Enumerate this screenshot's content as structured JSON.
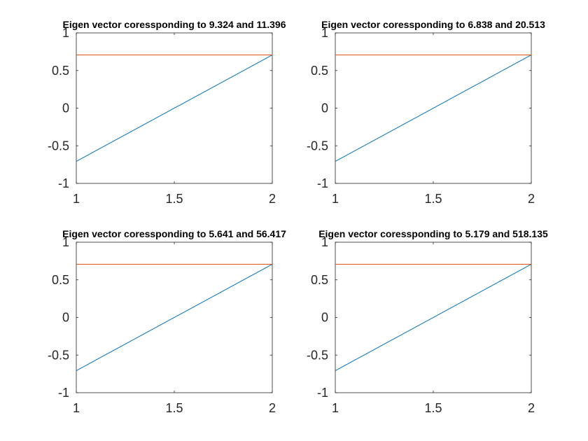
{
  "chart_data": [
    {
      "type": "line",
      "title": "Eigen vector coressponding to 9.324 and 11.396",
      "xlim": [
        1,
        2
      ],
      "ylim": [
        -1,
        1
      ],
      "xticks": [
        "1",
        "1.5",
        "2"
      ],
      "yticks": [
        "-1",
        "-0.5",
        "0",
        "0.5",
        "1"
      ],
      "x": [
        1,
        2
      ],
      "series": [
        {
          "values": [
            -0.7071,
            0.7071
          ],
          "color": "#0072BD"
        },
        {
          "values": [
            0.7071,
            0.7071
          ],
          "color": "#D95319"
        }
      ],
      "grid": false
    },
    {
      "type": "line",
      "title": "Eigen vector coressponding to 6.838 and 20.513",
      "xlim": [
        1,
        2
      ],
      "ylim": [
        -1,
        1
      ],
      "xticks": [
        "1",
        "1.5",
        "2"
      ],
      "yticks": [
        "-1",
        "-0.5",
        "0",
        "0.5",
        "1"
      ],
      "x": [
        1,
        2
      ],
      "series": [
        {
          "values": [
            -0.7071,
            0.7071
          ],
          "color": "#0072BD"
        },
        {
          "values": [
            0.7071,
            0.7071
          ],
          "color": "#D95319"
        }
      ],
      "grid": false
    },
    {
      "type": "line",
      "title": "Eigen vector coressponding to 5.641 and 56.417",
      "xlim": [
        1,
        2
      ],
      "ylim": [
        -1,
        1
      ],
      "xticks": [
        "1",
        "1.5",
        "2"
      ],
      "yticks": [
        "-1",
        "-0.5",
        "0",
        "0.5",
        "1"
      ],
      "x": [
        1,
        2
      ],
      "series": [
        {
          "values": [
            -0.7071,
            0.7071
          ],
          "color": "#0072BD"
        },
        {
          "values": [
            0.7071,
            0.7071
          ],
          "color": "#D95319"
        }
      ],
      "grid": false
    },
    {
      "type": "line",
      "title": "Eigen vector coressponding to 5.179 and 518.135",
      "xlim": [
        1,
        2
      ],
      "ylim": [
        -1,
        1
      ],
      "xticks": [
        "1",
        "1.5",
        "2"
      ],
      "yticks": [
        "-1",
        "-0.5",
        "0",
        "0.5",
        "1"
      ],
      "x": [
        1,
        2
      ],
      "series": [
        {
          "values": [
            -0.7071,
            0.7071
          ],
          "color": "#0072BD"
        },
        {
          "values": [
            0.7071,
            0.7071
          ],
          "color": "#D95319"
        }
      ],
      "grid": false
    }
  ]
}
